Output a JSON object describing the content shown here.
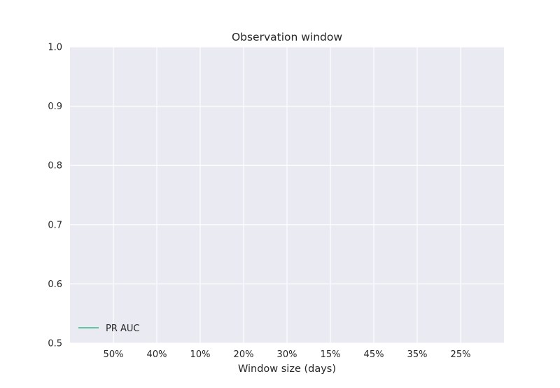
{
  "chart_data": {
    "type": "line",
    "title": "Observation window",
    "xlabel": "Window size (days)",
    "ylabel": "",
    "categories": [
      "50%",
      "40%",
      "10%",
      "20%",
      "30%",
      "15%",
      "45%",
      "35%",
      "25%"
    ],
    "ylim": [
      0.5,
      1.0
    ],
    "yticks": [
      "0.5",
      "0.6",
      "0.7",
      "0.8",
      "0.9",
      "1.0"
    ],
    "grid": true,
    "legend_position": "lower-left",
    "series": [
      {
        "name": "PR AUC",
        "color": "#66c2a5",
        "values": [
          null,
          null,
          null,
          null,
          null,
          null,
          null,
          null,
          null
        ]
      }
    ],
    "colors": {
      "plot_background": "#eaeaf2",
      "grid": "#ffffff",
      "text": "#262626"
    }
  }
}
